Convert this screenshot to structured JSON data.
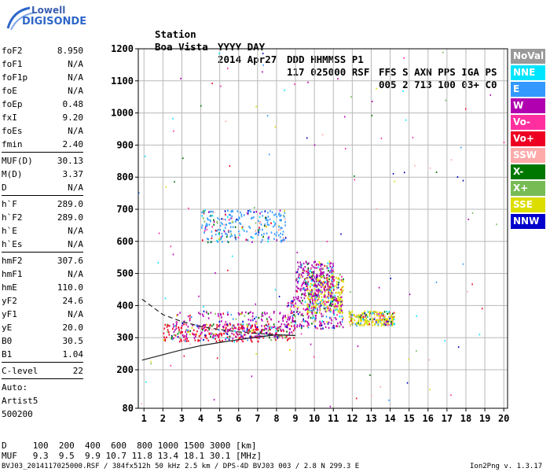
{
  "logo": {
    "line1": "Lowell",
    "line2": "DIGISONDE"
  },
  "header": {
    "row1": [
      "Station",
      "YYYY DAY",
      "DDD HHMMSS P1",
      "FFS S AXN PPS IGA PS"
    ],
    "row2": [
      "Boa Vista",
      "2014 Apr27",
      "117 025000 RSF",
      "005 2 713 100 03+ C0"
    ]
  },
  "params": {
    "group1": [
      {
        "name": "foF2",
        "value": "8.950"
      },
      {
        "name": "foF1",
        "value": "N/A"
      },
      {
        "name": "foF1p",
        "value": "N/A"
      },
      {
        "name": "foE",
        "value": "N/A"
      },
      {
        "name": "foEp",
        "value": "0.48"
      },
      {
        "name": "fxI",
        "value": "9.20"
      },
      {
        "name": "foEs",
        "value": "N/A"
      },
      {
        "name": "fmin",
        "value": "2.40"
      }
    ],
    "group2": [
      {
        "name": "MUF(D)",
        "value": "30.13"
      },
      {
        "name": "M(D)",
        "value": "3.37"
      },
      {
        "name": "D",
        "value": "N/A"
      }
    ],
    "group3": [
      {
        "name": "h`F",
        "value": "289.0"
      },
      {
        "name": "h`F2",
        "value": "289.0"
      },
      {
        "name": "h`E",
        "value": "N/A"
      },
      {
        "name": "h`Es",
        "value": "N/A"
      }
    ],
    "group4": [
      {
        "name": "hmF2",
        "value": "307.6"
      },
      {
        "name": "hmF1",
        "value": "N/A"
      },
      {
        "name": "hmE",
        "value": "110.0"
      },
      {
        "name": "yF2",
        "value": "24.6"
      },
      {
        "name": "yF1",
        "value": "N/A"
      },
      {
        "name": "yE",
        "value": "20.0"
      },
      {
        "name": "B0",
        "value": "30.5"
      },
      {
        "name": "B1",
        "value": "1.04"
      }
    ],
    "clevel": {
      "name": "C-level",
      "value": "22"
    },
    "auto": [
      "Auto:",
      "Artist5",
      "500200"
    ]
  },
  "footer": {
    "d_row": "D     100  200  400  600  800 1000 1500 3000 [km]",
    "muf_row": "MUF   9.3  9.5  9.9 10.7 11.8 13.4 18.1 30.1 [MHz]",
    "file_info": "BVJ03_2014117025000.RSF / 384fx512h 50 kHz 2.5 km / DPS-4D BVJ03 003 / 2.8 N 299.3 E",
    "version": "Ion2Png v. 1.3.17"
  },
  "legend": [
    {
      "label": "NoVal",
      "color": "#999999"
    },
    {
      "label": "NNE",
      "color": "#00e5ff"
    },
    {
      "label": "E",
      "color": "#3399ff"
    },
    {
      "label": "W",
      "color": "#b000b0"
    },
    {
      "label": "Vo-",
      "color": "#ff2fa0"
    },
    {
      "label": "Vo+",
      "color": "#ee0022"
    },
    {
      "label": "SSW",
      "color": "#ffaaaa"
    },
    {
      "label": "X-",
      "color": "#007700"
    },
    {
      "label": "X+",
      "color": "#77bb55"
    },
    {
      "label": "SSE",
      "color": "#dddd00"
    },
    {
      "label": "NNW",
      "color": "#0000cc"
    }
  ],
  "chart_data": {
    "type": "scatter",
    "title": "",
    "xlabel": "",
    "ylabel": "",
    "xlim": [
      0.7,
      20.2
    ],
    "ylim": [
      80,
      1200
    ],
    "x_ticks": [
      1,
      2,
      3,
      4,
      5,
      6,
      7,
      8,
      9,
      10,
      11,
      12,
      13,
      14,
      15,
      16,
      17,
      18,
      19,
      20
    ],
    "y_ticks": [
      80,
      200,
      300,
      400,
      500,
      600,
      700,
      800,
      900,
      1000,
      1100,
      1200
    ],
    "grid": true,
    "legend_position": "right",
    "clusters": [
      {
        "name": "F2 trace main",
        "x_range": [
          2.0,
          9.0
        ],
        "y_range": [
          290,
          345
        ],
        "color": "#ee0022"
      },
      {
        "name": "F2 trace mixed",
        "x_range": [
          2.5,
          9.0
        ],
        "y_range": [
          300,
          385
        ],
        "color": "#b000b0"
      },
      {
        "name": "F2 rising",
        "x_range": [
          8.5,
          11.5
        ],
        "y_range": [
          330,
          430
        ],
        "color": "#b000b0"
      },
      {
        "name": "F2 spread",
        "x_range": [
          9.5,
          11.5
        ],
        "y_range": [
          380,
          500
        ],
        "color": "#dddd00"
      },
      {
        "name": "F2 upper",
        "x_range": [
          9.0,
          11.0
        ],
        "y_range": [
          430,
          540
        ],
        "color": "#b000b0"
      },
      {
        "name": "F2 tail",
        "x_range": [
          11.8,
          14.2
        ],
        "y_range": [
          340,
          385
        ],
        "color": "#dddd00"
      },
      {
        "name": "multi-hop",
        "x_range": [
          4.0,
          8.5
        ],
        "y_range": [
          600,
          700
        ],
        "color": "#3399ff"
      }
    ],
    "profile_curves": [
      {
        "name": "dashed profile",
        "style": "dashed",
        "x": [
          0.9,
          2.0,
          3.0,
          4.0,
          5.0,
          6.0,
          7.0,
          8.0,
          9.0
        ],
        "y": [
          420,
          372,
          350,
          335,
          325,
          318,
          313,
          309,
          307
        ]
      },
      {
        "name": "solid profile",
        "style": "solid",
        "x": [
          0.9,
          2.0,
          3.0,
          4.0,
          5.0,
          6.0,
          7.0,
          8.0,
          8.9
        ],
        "y": [
          230,
          247,
          262,
          275,
          285,
          294,
          302,
          309,
          307
        ]
      }
    ]
  }
}
